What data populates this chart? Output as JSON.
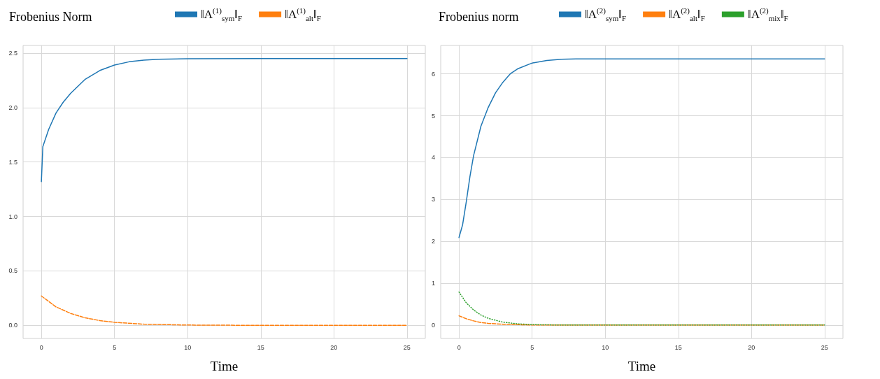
{
  "chart_data": [
    {
      "type": "line",
      "legend_title": "Frobenius Norm",
      "xlabel": "Time",
      "legend": "top",
      "grid": true,
      "xlim": [
        -1.25,
        26.25
      ],
      "xticks": [
        0,
        5,
        10,
        15,
        20,
        25
      ],
      "ylim": [
        -0.12,
        2.57
      ],
      "yticks": [
        {
          "value": 0,
          "label": "0.0"
        },
        {
          "value": 0.5,
          "label": "0.5"
        },
        {
          "value": 1,
          "label": "1.0"
        },
        {
          "value": 1.5,
          "label": "1.5"
        },
        {
          "value": 2,
          "label": "2.0"
        },
        {
          "value": 2.5,
          "label": "2.5"
        }
      ],
      "series": [
        {
          "name": "‖A$^{(1)}$$_{sym}$‖$_{F}$",
          "color": "#1f77b4",
          "line_style": "solid",
          "x": [
            0,
            0.1,
            0.5,
            1,
            1.5,
            2,
            3,
            4,
            5,
            6,
            7,
            8,
            10,
            15,
            25
          ],
          "values": [
            1.32,
            1.64,
            1.8,
            1.95,
            2.05,
            2.13,
            2.26,
            2.34,
            2.39,
            2.42,
            2.435,
            2.443,
            2.448,
            2.45,
            2.45
          ]
        },
        {
          "name": "‖A$^{(1)}$$_{alt}$‖$_{F}$",
          "color": "#ff7f0e",
          "line_style": "dashed",
          "x": [
            0,
            1,
            2,
            3,
            4,
            5,
            7,
            10,
            15,
            25
          ],
          "values": [
            0.27,
            0.17,
            0.11,
            0.069,
            0.044,
            0.028,
            0.011,
            0.003,
            0,
            0
          ]
        }
      ]
    },
    {
      "type": "line",
      "legend_title": "Frobenius norm",
      "xlabel": "Time",
      "legend": "top",
      "grid": true,
      "xlim": [
        -1.25,
        26.25
      ],
      "xticks": [
        0,
        5,
        10,
        15,
        20,
        25
      ],
      "ylim": [
        -0.32,
        6.68
      ],
      "yticks": [
        0,
        1,
        2,
        3,
        4,
        5,
        6
      ],
      "series": [
        {
          "name": "‖A$^{(2)}$$_{sym}$‖$_{F}$",
          "color": "#1f77b4",
          "line_style": "solid",
          "x": [
            0,
            0.25,
            0.5,
            0.75,
            1,
            1.5,
            2,
            2.5,
            3,
            3.5,
            4,
            5,
            6,
            7,
            8,
            10,
            25
          ],
          "values": [
            2.09,
            2.4,
            2.95,
            3.55,
            4.05,
            4.75,
            5.2,
            5.55,
            5.8,
            6.0,
            6.12,
            6.26,
            6.32,
            6.35,
            6.36,
            6.36,
            6.36
          ]
        },
        {
          "name": "‖A$^{(2)}$$_{alt}$‖$_{F}$",
          "color": "#ff7f0e",
          "line_style": "dashed",
          "x": [
            0,
            0.5,
            1,
            1.5,
            2,
            3,
            4,
            5,
            7,
            25
          ],
          "values": [
            0.22,
            0.15,
            0.1,
            0.06,
            0.04,
            0.02,
            0.01,
            0,
            0,
            0
          ]
        },
        {
          "name": "‖A$^{(2)}$$_{mix}$‖$_{F}$",
          "color": "#2ca02c",
          "line_style": "dotted",
          "x": [
            0,
            0.5,
            1,
            1.5,
            2,
            3,
            4,
            5,
            7,
            10,
            25
          ],
          "values": [
            0.79,
            0.53,
            0.36,
            0.24,
            0.16,
            0.07,
            0.03,
            0.01,
            0,
            0,
            0
          ]
        }
      ]
    }
  ]
}
